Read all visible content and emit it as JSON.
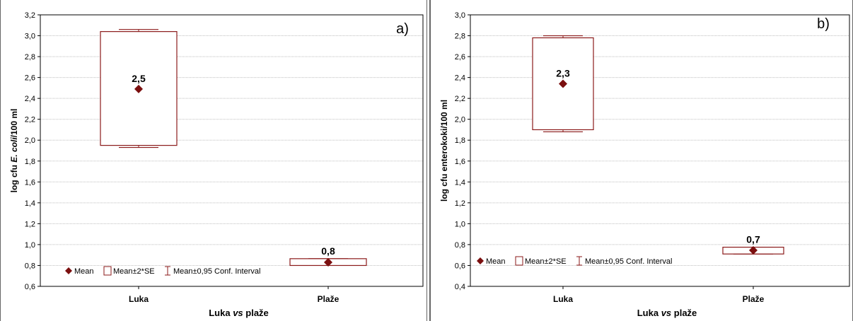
{
  "chart_data": [
    {
      "type": "box",
      "panel_label": "a)",
      "categories": [
        "Luka",
        "Plaže"
      ],
      "xlabel_parts": [
        "Luka ",
        "vs",
        " plaže"
      ],
      "ylabel_parts": [
        "log cfu ",
        "E. coli",
        "/100 ml"
      ],
      "ylim": [
        0.6,
        3.2
      ],
      "yticks": [
        "0,6",
        "0,8",
        "1,0",
        "1,2",
        "1,4",
        "1,6",
        "1,8",
        "2,0",
        "2,2",
        "2,4",
        "2,6",
        "2,8",
        "3,0",
        "3,2"
      ],
      "grid": true,
      "series": [
        {
          "category": "Luka",
          "mean": 2.49,
          "se_low": 1.95,
          "se_high": 3.04,
          "ci_low": 1.93,
          "ci_high": 3.06,
          "label": "2,5"
        },
        {
          "category": "Plaže",
          "mean": 0.83,
          "se_low": 0.8,
          "se_high": 0.865,
          "ci_low": 0.8,
          "ci_high": 0.865,
          "label": "0,8"
        }
      ],
      "legend": [
        "Mean",
        "Mean±2*SE",
        "Mean±0,95 Conf. Interval"
      ],
      "legend_position": "bottom-left",
      "colors": {
        "mark": "#7b0f0f",
        "box": "#8b1a1a",
        "grid": "#bfbfbf"
      }
    },
    {
      "type": "box",
      "panel_label": "b)",
      "categories": [
        "Luka",
        "Plaže"
      ],
      "xlabel_parts": [
        "Luka ",
        "vs",
        " plaže"
      ],
      "ylabel_parts": [
        "log cfu enterokoki/100 ml",
        "",
        ""
      ],
      "ylim": [
        0.4,
        3.0
      ],
      "yticks": [
        "0,4",
        "0,6",
        "0,8",
        "1,0",
        "1,2",
        "1,4",
        "1,6",
        "1,8",
        "2,0",
        "2,2",
        "2,4",
        "2,6",
        "2,8",
        "3,0"
      ],
      "grid": true,
      "series": [
        {
          "category": "Luka",
          "mean": 2.34,
          "se_low": 1.9,
          "se_high": 2.78,
          "ci_low": 1.88,
          "ci_high": 2.8,
          "label": "2,3"
        },
        {
          "category": "Plaže",
          "mean": 0.745,
          "se_low": 0.71,
          "se_high": 0.775,
          "ci_low": 0.71,
          "ci_high": 0.775,
          "label": "0,7"
        }
      ],
      "legend": [
        "Mean",
        "Mean±2*SE",
        "Mean±0,95 Conf. Interval"
      ],
      "legend_position": "bottom-left",
      "colors": {
        "mark": "#7b0f0f",
        "box": "#8b1a1a",
        "grid": "#bfbfbf"
      }
    }
  ]
}
